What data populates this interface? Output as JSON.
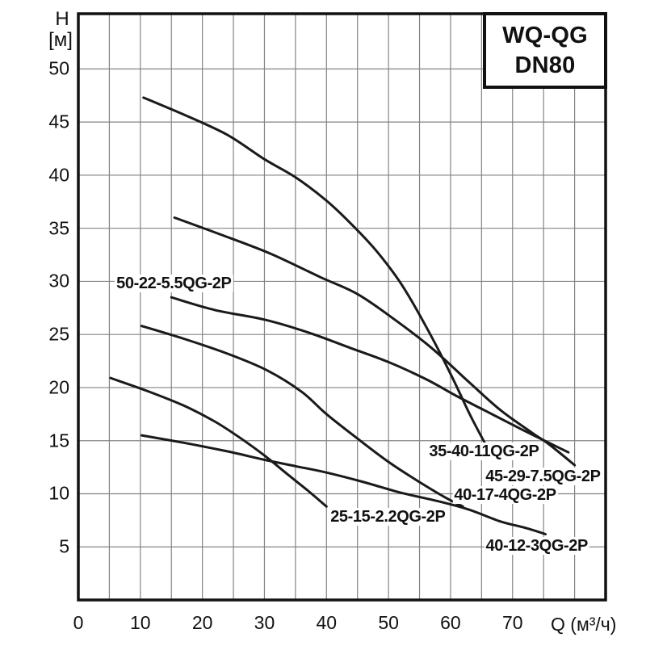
{
  "title_box": {
    "line1": "WQ-QG",
    "line2": "DN80"
  },
  "axes": {
    "y_label_line1": "H",
    "y_label_line2": "[м]",
    "x_unit_label": "Q (м³/ч)",
    "y_ticks": [
      50,
      45,
      40,
      35,
      30,
      25,
      20,
      15,
      10,
      5
    ],
    "x_ticks": [
      0,
      10,
      20,
      30,
      40,
      50,
      60,
      70
    ]
  },
  "colors": {
    "curve": "#1a1a1a",
    "frame": "#111111",
    "grid": "#848484",
    "background": "#ffffff"
  },
  "chart_data": {
    "type": "line",
    "title": "WQ-QG DN80",
    "xlabel": "Q (м³/ч)",
    "ylabel": "H [м]",
    "xlim": [
      0,
      85
    ],
    "ylim": [
      0,
      55.2
    ],
    "grid": {
      "on": true,
      "step_x": 5,
      "step_y": 5,
      "y_max_line": 50
    },
    "legend_position": "labels-on-curves",
    "series": [
      {
        "name": "35-40-11QG-2P",
        "points": [
          [
            10.5,
            47.3
          ],
          [
            17,
            45.7
          ],
          [
            24,
            43.8
          ],
          [
            30,
            41.5
          ],
          [
            35,
            39.8
          ],
          [
            40,
            37.6
          ],
          [
            44,
            35.4
          ],
          [
            48,
            32.9
          ],
          [
            52,
            29.8
          ],
          [
            56,
            25.8
          ],
          [
            60,
            21.3
          ],
          [
            63,
            17.6
          ],
          [
            65.5,
            14.8
          ]
        ],
        "label_pos": [
          65.4,
          14.0
        ]
      },
      {
        "name": "45-29-7.5QG-2P",
        "points": [
          [
            15.5,
            36.0
          ],
          [
            23,
            34.4
          ],
          [
            31,
            32.6
          ],
          [
            39,
            30.4
          ],
          [
            45,
            28.8
          ],
          [
            51,
            26.4
          ],
          [
            57,
            23.7
          ],
          [
            63,
            20.5
          ],
          [
            68,
            17.9
          ],
          [
            73,
            15.8
          ],
          [
            76,
            14.6
          ],
          [
            80,
            12.7
          ]
        ],
        "label_pos": [
          74.9,
          11.6
        ]
      },
      {
        "name": "50-22-5.5QG-2P",
        "points": [
          [
            15,
            28.5
          ],
          [
            22,
            27.3
          ],
          [
            30,
            26.4
          ],
          [
            37,
            25.2
          ],
          [
            44,
            23.7
          ],
          [
            50,
            22.4
          ],
          [
            56,
            20.8
          ],
          [
            61,
            19.2
          ],
          [
            66,
            17.7
          ],
          [
            71,
            16.2
          ],
          [
            75.5,
            14.9
          ],
          [
            79,
            13.9
          ]
        ],
        "label_pos": [
          15.4,
          29.8
        ]
      },
      {
        "name": "40-17-4QG-2P",
        "points": [
          [
            10.2,
            25.8
          ],
          [
            17,
            24.6
          ],
          [
            24,
            23.2
          ],
          [
            30.5,
            21.6
          ],
          [
            36,
            19.6
          ],
          [
            40,
            17.5
          ],
          [
            45,
            15.2
          ],
          [
            50,
            13.0
          ],
          [
            55,
            11.1
          ],
          [
            59,
            9.7
          ],
          [
            62,
            8.8
          ]
        ],
        "label_pos": [
          68.8,
          9.9
        ]
      },
      {
        "name": "25-15-2.2QG-2P",
        "points": [
          [
            5.2,
            20.9
          ],
          [
            11,
            19.7
          ],
          [
            17,
            18.3
          ],
          [
            22,
            16.8
          ],
          [
            26,
            15.3
          ],
          [
            30,
            13.6
          ],
          [
            34,
            11.7
          ],
          [
            37,
            10.3
          ],
          [
            40,
            8.8
          ]
        ],
        "label_pos": [
          49.9,
          7.8
        ]
      },
      {
        "name": "40-12-3QG-2P",
        "points": [
          [
            10.2,
            15.5
          ],
          [
            17,
            14.8
          ],
          [
            24,
            14.0
          ],
          [
            30,
            13.2
          ],
          [
            35,
            12.6
          ],
          [
            40,
            12.0
          ],
          [
            46,
            11.1
          ],
          [
            52,
            10.1
          ],
          [
            58,
            9.3
          ],
          [
            63,
            8.5
          ],
          [
            68,
            7.4
          ],
          [
            72,
            6.8
          ],
          [
            75.3,
            6.2
          ]
        ],
        "label_pos": [
          73.9,
          5.1
        ]
      }
    ]
  }
}
